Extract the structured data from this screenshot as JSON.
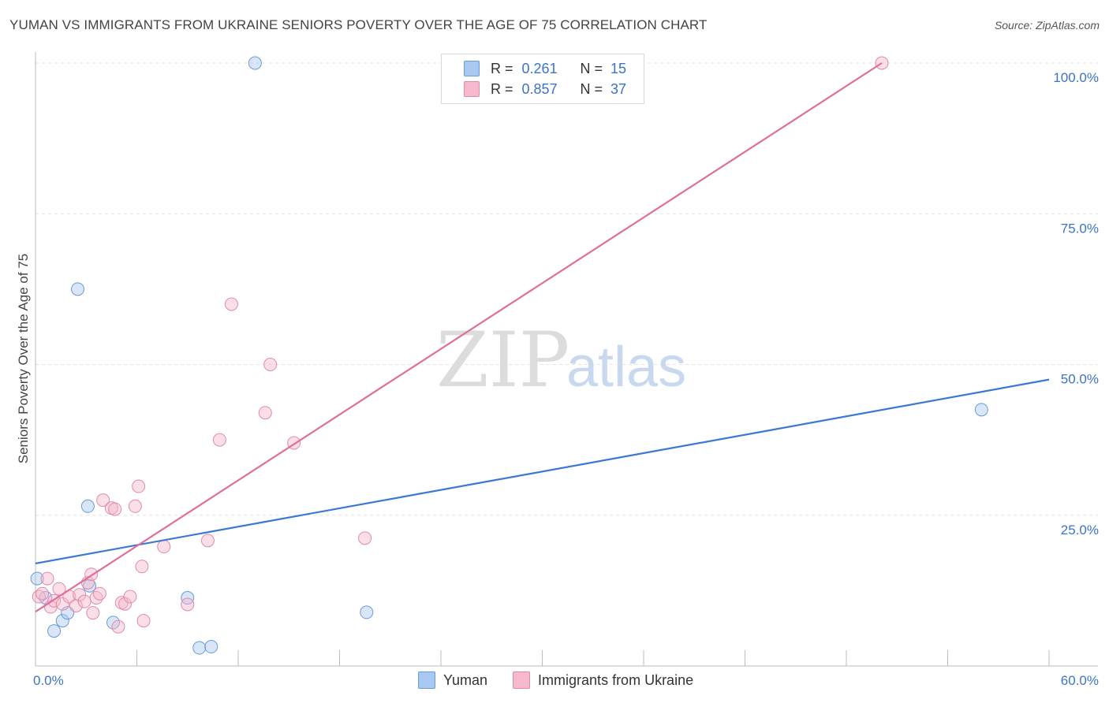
{
  "header": {
    "title": "YUMAN VS IMMIGRANTS FROM UKRAINE SENIORS POVERTY OVER THE AGE OF 75 CORRELATION CHART",
    "source": "Source: ZipAtlas.com"
  },
  "watermark": {
    "zip": "ZIP",
    "atlas": "atlas"
  },
  "legend": {
    "rows": [
      {
        "r_label": "R =",
        "r_value": "0.261",
        "n_label": "N =",
        "n_value": "15",
        "color": "#a8c8f0"
      },
      {
        "r_label": "R =",
        "r_value": "0.857",
        "n_label": "N =",
        "n_value": "37",
        "color": "#f5b8cc"
      }
    ]
  },
  "bottom_legend": {
    "items": [
      {
        "label": "Yuman",
        "color": "#a8c8f0"
      },
      {
        "label": "Immigrants from Ukraine",
        "color": "#f5b8cc"
      }
    ]
  },
  "chart_data": {
    "type": "scatter",
    "title": "YUMAN VS IMMIGRANTS FROM UKRAINE SENIORS POVERTY OVER THE AGE OF 75 CORRELATION CHART",
    "xlabel": "",
    "ylabel": "Seniors Poverty Over the Age of 75",
    "xlim": [
      0,
      60
    ],
    "ylim": [
      0,
      100
    ],
    "x_tick_labels": [
      "0.0%",
      "60.0%"
    ],
    "y_tick_labels": [
      "25.0%",
      "50.0%",
      "75.0%",
      "100.0%"
    ],
    "y_tick_values": [
      25,
      50,
      75,
      100
    ],
    "series": [
      {
        "name": "Yuman",
        "color": "#3a78d4",
        "fill": "#a8c8f0",
        "points": [
          [
            0.1,
            14.5
          ],
          [
            0.6,
            11.3
          ],
          [
            1.1,
            5.8
          ],
          [
            1.6,
            7.5
          ],
          [
            1.9,
            8.8
          ],
          [
            2.5,
            62.5
          ],
          [
            3.1,
            26.5
          ],
          [
            3.2,
            13.3
          ],
          [
            4.6,
            7.2
          ],
          [
            9.0,
            11.3
          ],
          [
            9.7,
            3.0
          ],
          [
            10.4,
            3.2
          ],
          [
            13.0,
            100.0
          ],
          [
            19.6,
            8.9
          ],
          [
            56.0,
            42.5
          ]
        ],
        "trend": {
          "x": [
            0,
            60
          ],
          "y": [
            17.0,
            47.5
          ]
        }
      },
      {
        "name": "Immigrants from Ukraine",
        "color": "#e06e9a",
        "fill": "#f5b8cc",
        "points": [
          [
            0.2,
            11.5
          ],
          [
            0.4,
            12.0
          ],
          [
            0.7,
            14.5
          ],
          [
            0.9,
            9.8
          ],
          [
            1.1,
            10.8
          ],
          [
            1.4,
            12.8
          ],
          [
            1.6,
            10.3
          ],
          [
            2.0,
            11.5
          ],
          [
            2.4,
            10.0
          ],
          [
            2.6,
            11.8
          ],
          [
            2.9,
            10.7
          ],
          [
            3.1,
            13.8
          ],
          [
            3.3,
            15.2
          ],
          [
            3.4,
            8.8
          ],
          [
            3.6,
            11.3
          ],
          [
            3.8,
            12.0
          ],
          [
            4.0,
            27.5
          ],
          [
            4.5,
            26.2
          ],
          [
            4.7,
            26.0
          ],
          [
            4.9,
            6.5
          ],
          [
            5.1,
            10.5
          ],
          [
            5.3,
            10.3
          ],
          [
            5.6,
            11.5
          ],
          [
            5.9,
            26.5
          ],
          [
            6.1,
            29.8
          ],
          [
            6.3,
            16.5
          ],
          [
            6.4,
            7.5
          ],
          [
            7.6,
            19.8
          ],
          [
            9.0,
            10.2
          ],
          [
            10.2,
            20.8
          ],
          [
            10.9,
            37.5
          ],
          [
            11.6,
            60.0
          ],
          [
            13.6,
            42.0
          ],
          [
            13.9,
            50.0
          ],
          [
            15.3,
            37.0
          ],
          [
            19.5,
            21.2
          ],
          [
            50.1,
            100.0
          ]
        ],
        "trend": {
          "x": [
            0,
            50.1
          ],
          "y": [
            9.0,
            100.0
          ]
        }
      }
    ],
    "legend_position": "top-center",
    "grid": true
  }
}
